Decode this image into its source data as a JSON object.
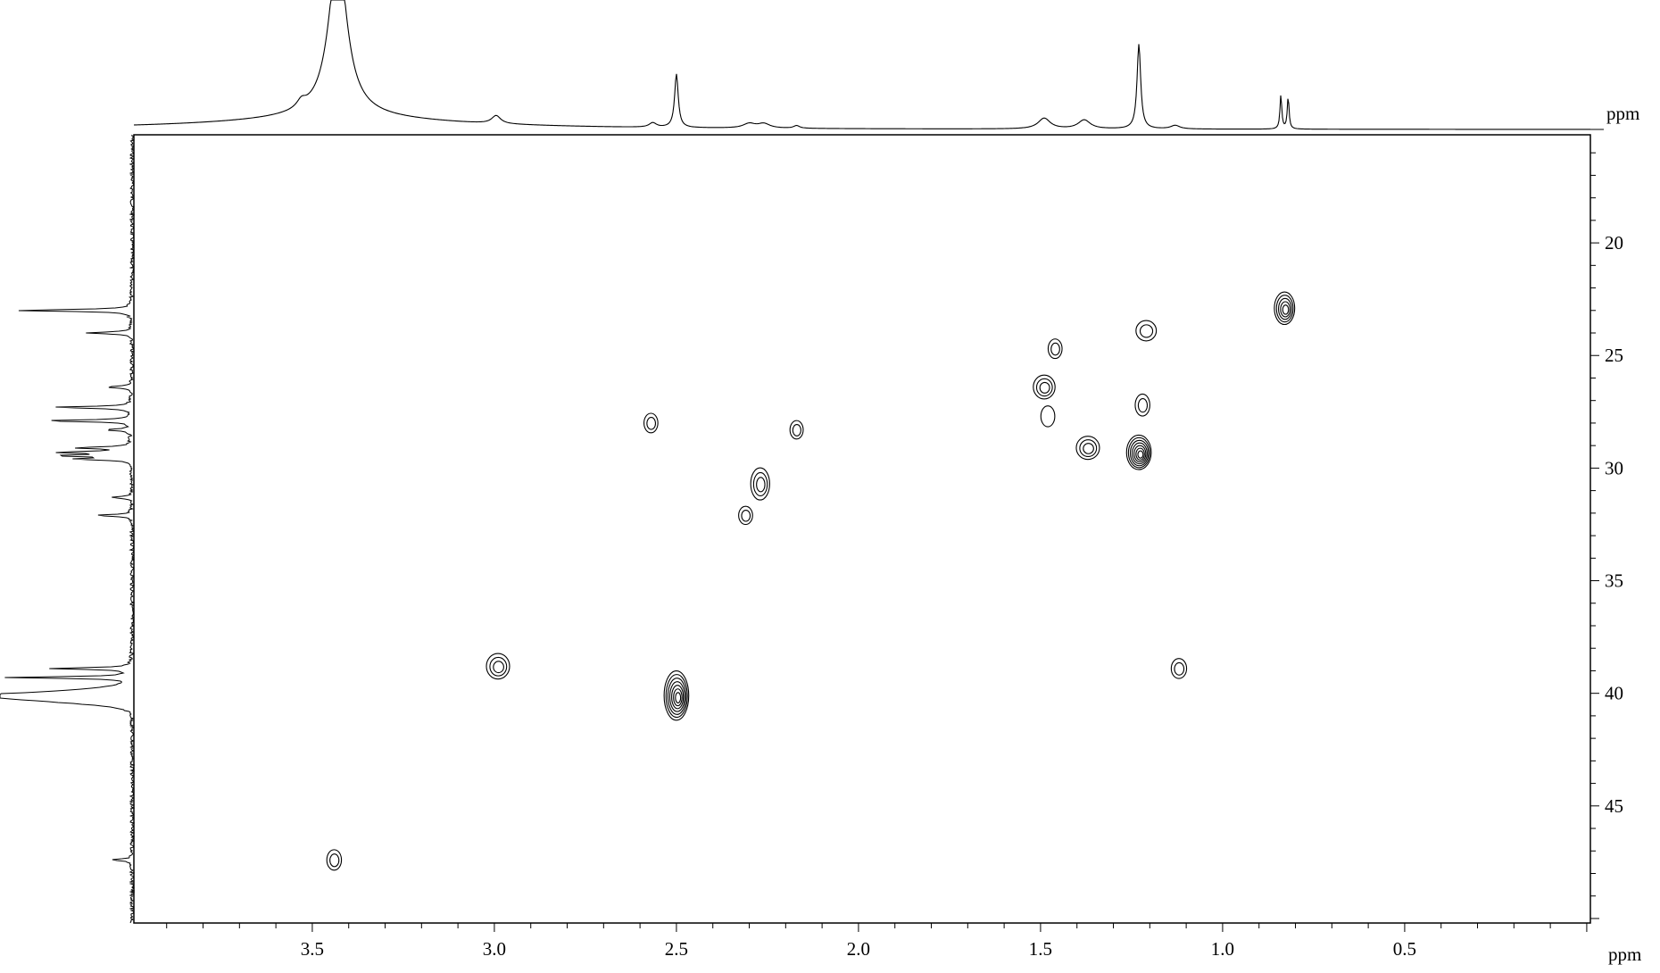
{
  "chart_data": {
    "type": "contour",
    "xlabel": "ppm",
    "ylabel": "ppm",
    "x_axis": {
      "direction": "reversed",
      "range": [
        3.99,
        -0.01
      ],
      "major_ticks": [
        3.5,
        3.0,
        2.5,
        2.0,
        1.5,
        1.0,
        0.5
      ],
      "minor_step": 0.1,
      "tick_labels": [
        "3.5",
        "3.0",
        "2.5",
        "2.0",
        "1.5",
        "1.0",
        "0.5"
      ]
    },
    "y_axis": {
      "direction": "downward",
      "range": [
        15.2,
        50.2
      ],
      "major_ticks": [
        20,
        25,
        30,
        35,
        40,
        45
      ],
      "minor_step": 1,
      "tick_labels": [
        "20",
        "25",
        "30",
        "35",
        "40",
        "45"
      ]
    },
    "grid": false,
    "cross_peaks": [
      {
        "h": 3.44,
        "c": 47.4,
        "size": 0.4,
        "levels": 2,
        "elong": 1.4
      },
      {
        "h": 2.99,
        "c": 38.8,
        "size": 1.0,
        "levels": 3,
        "elong": 1.1
      },
      {
        "h": 2.5,
        "c": 40.1,
        "size": 1.1,
        "levels": 7,
        "elong": 2.0
      },
      {
        "h": 2.57,
        "c": 28.0,
        "size": 0.35,
        "levels": 2,
        "elong": 1.4
      },
      {
        "h": 2.27,
        "c": 30.7,
        "size": 0.7,
        "levels": 3,
        "elong": 1.7
      },
      {
        "h": 2.31,
        "c": 32.1,
        "size": 0.35,
        "levels": 2,
        "elong": 1.3
      },
      {
        "h": 2.17,
        "c": 28.3,
        "size": 0.3,
        "levels": 2,
        "elong": 1.4
      },
      {
        "h": 1.49,
        "c": 26.4,
        "size": 0.9,
        "levels": 3,
        "elong": 1.1
      },
      {
        "h": 1.46,
        "c": 24.7,
        "size": 0.35,
        "levels": 2,
        "elong": 1.4
      },
      {
        "h": 1.48,
        "c": 27.7,
        "size": 0.35,
        "levels": 1,
        "elong": 1.5
      },
      {
        "h": 1.37,
        "c": 29.1,
        "size": 1.0,
        "levels": 3,
        "elong": 1.0
      },
      {
        "h": 1.23,
        "c": 29.3,
        "size": 1.1,
        "levels": 7,
        "elong": 1.4
      },
      {
        "h": 1.21,
        "c": 23.9,
        "size": 0.8,
        "levels": 2,
        "elong": 1.0
      },
      {
        "h": 1.22,
        "c": 27.2,
        "size": 0.4,
        "levels": 2,
        "elong": 1.5
      },
      {
        "h": 1.12,
        "c": 38.9,
        "size": 0.45,
        "levels": 2,
        "elong": 1.3
      },
      {
        "h": 0.83,
        "c": 22.9,
        "size": 0.8,
        "levels": 5,
        "elong": 1.6
      }
    ],
    "top_projection_1H": {
      "baseline_slope": 0.7,
      "peaks": [
        {
          "ppm": 3.43,
          "height": 180,
          "width": 0.03
        },
        {
          "ppm": 3.53,
          "height": 8,
          "width": 0.015
        },
        {
          "ppm": 2.995,
          "height": 9,
          "width": 0.015
        },
        {
          "ppm": 2.5,
          "height": 60,
          "width": 0.006
        },
        {
          "ppm": 2.565,
          "height": 5,
          "width": 0.012
        },
        {
          "ppm": 2.3,
          "height": 5,
          "width": 0.02
        },
        {
          "ppm": 2.26,
          "height": 5,
          "width": 0.02
        },
        {
          "ppm": 2.17,
          "height": 3,
          "width": 0.01
        },
        {
          "ppm": 1.49,
          "height": 12,
          "width": 0.02
        },
        {
          "ppm": 1.38,
          "height": 10,
          "width": 0.02
        },
        {
          "ppm": 1.23,
          "height": 95,
          "width": 0.006
        },
        {
          "ppm": 1.13,
          "height": 4,
          "width": 0.015
        },
        {
          "ppm": 0.84,
          "height": 38,
          "width": 0.003
        },
        {
          "ppm": 0.82,
          "height": 36,
          "width": 0.003
        }
      ]
    },
    "left_projection_13C": {
      "peaks": [
        {
          "ppm": 23.0,
          "height": 133
        },
        {
          "ppm": 24.0,
          "height": 53
        },
        {
          "ppm": 26.4,
          "height": 30
        },
        {
          "ppm": 27.3,
          "height": 90
        },
        {
          "ppm": 27.9,
          "height": 100
        },
        {
          "ppm": 28.3,
          "height": 30
        },
        {
          "ppm": 29.1,
          "height": 60
        },
        {
          "ppm": 29.3,
          "height": 80
        },
        {
          "ppm": 29.45,
          "height": 80
        },
        {
          "ppm": 29.6,
          "height": 60
        },
        {
          "ppm": 31.3,
          "height": 25
        },
        {
          "ppm": 32.1,
          "height": 40
        },
        {
          "ppm": 38.9,
          "height": 90
        },
        {
          "ppm": 39.3,
          "height": 140
        },
        {
          "ppm": 40.1,
          "height": 140
        },
        {
          "ppm": 47.4,
          "height": 25
        }
      ]
    }
  }
}
